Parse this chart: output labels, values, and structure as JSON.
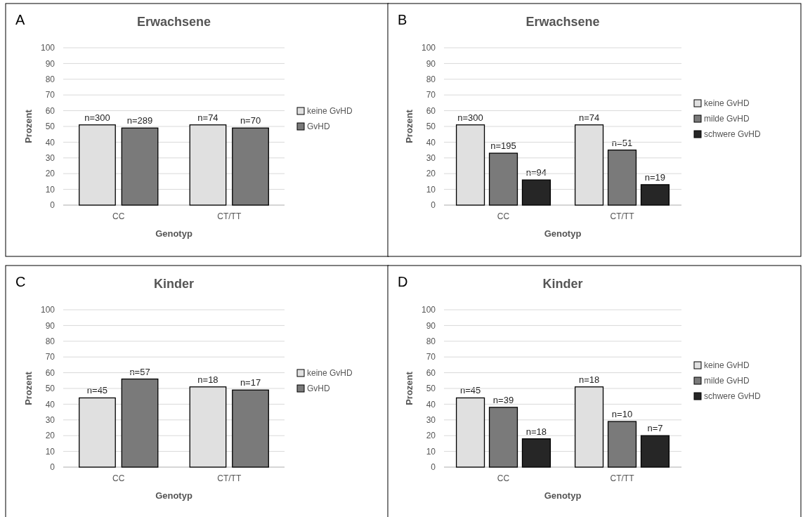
{
  "chart_data": [
    {
      "type": "bar",
      "title": "Erwachsene",
      "xlabel": "Genotyp",
      "ylabel": "Prozent",
      "categories": [
        "CC",
        "CT/TT"
      ],
      "ylim": [
        0,
        100
      ],
      "yticks": [
        0,
        10,
        20,
        30,
        40,
        50,
        60,
        70,
        80,
        90,
        100
      ],
      "grid": "y",
      "legend": "right",
      "annotations": [
        "A",
        "n=300",
        "n=289",
        "n=74",
        "n=70"
      ],
      "series": [
        {
          "name": "keine GvHD",
          "color": "#e0e0e0",
          "values": [
            51,
            51
          ]
        },
        {
          "name": "GvHD",
          "color": "#7a7a7a",
          "values": [
            49,
            49
          ]
        }
      ]
    },
    {
      "type": "bar",
      "title": "Erwachsene",
      "xlabel": "Genotyp",
      "ylabel": "Prozent",
      "categories": [
        "CC",
        "CT/TT"
      ],
      "ylim": [
        0,
        100
      ],
      "yticks": [
        0,
        10,
        20,
        30,
        40,
        50,
        60,
        70,
        80,
        90,
        100
      ],
      "grid": "y",
      "legend": "right",
      "annotations": [
        "B",
        "n=300",
        "n=195",
        "n=94",
        "n=74",
        "n=51",
        "n=19"
      ],
      "series": [
        {
          "name": "keine GvHD",
          "color": "#e0e0e0",
          "values": [
            51,
            51
          ]
        },
        {
          "name": "milde GvHD",
          "color": "#7a7a7a",
          "values": [
            33,
            35
          ]
        },
        {
          "name": "schwere GvHD",
          "color": "#262626",
          "values": [
            16,
            13
          ]
        }
      ]
    },
    {
      "type": "bar",
      "title": "Kinder",
      "xlabel": "Genotyp",
      "ylabel": "Prozent",
      "categories": [
        "CC",
        "CT/TT"
      ],
      "ylim": [
        0,
        100
      ],
      "yticks": [
        0,
        10,
        20,
        30,
        40,
        50,
        60,
        70,
        80,
        90,
        100
      ],
      "grid": "y",
      "legend": "right",
      "annotations": [
        "C",
        "n=45",
        "n=57",
        "n=18",
        "n=17"
      ],
      "series": [
        {
          "name": "keine GvHD",
          "color": "#e0e0e0",
          "values": [
            44,
            51
          ]
        },
        {
          "name": "GvHD",
          "color": "#7a7a7a",
          "values": [
            56,
            49
          ]
        }
      ]
    },
    {
      "type": "bar",
      "title": "Kinder",
      "xlabel": "Genotyp",
      "ylabel": "Prozent",
      "categories": [
        "CC",
        "CT/TT"
      ],
      "ylim": [
        0,
        100
      ],
      "yticks": [
        0,
        10,
        20,
        30,
        40,
        50,
        60,
        70,
        80,
        90,
        100
      ],
      "grid": "y",
      "legend": "right",
      "annotations": [
        "D",
        "n=45",
        "n=39",
        "n=18",
        "n=18",
        "n=10",
        "n=7"
      ],
      "series": [
        {
          "name": "keine GvHD",
          "color": "#e0e0e0",
          "values": [
            44,
            51
          ]
        },
        {
          "name": "milde GvHD",
          "color": "#7a7a7a",
          "values": [
            38,
            29
          ]
        },
        {
          "name": "schwere GvHD",
          "color": "#262626",
          "values": [
            18,
            20
          ]
        }
      ]
    }
  ]
}
